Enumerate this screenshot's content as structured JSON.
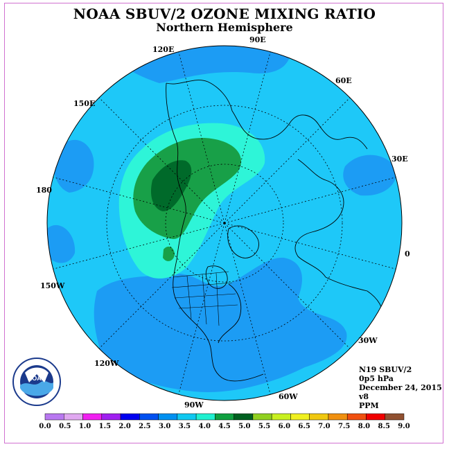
{
  "title": "NOAA SBUV/2 OZONE MIXING RATIO",
  "subtitle": "Northern Hemisphere",
  "longitude_labels": [
    {
      "id": "lon-90e",
      "text": "90E"
    },
    {
      "id": "lon-60e",
      "text": "60E"
    },
    {
      "id": "lon-30e",
      "text": "30E"
    },
    {
      "id": "lon-0",
      "text": "0"
    },
    {
      "id": "lon-30w",
      "text": "30W"
    },
    {
      "id": "lon-60w",
      "text": "60W"
    },
    {
      "id": "lon-90w",
      "text": "90W"
    },
    {
      "id": "lon-120w",
      "text": "120W"
    },
    {
      "id": "lon-150w",
      "text": "150W"
    },
    {
      "id": "lon-180",
      "text": "180"
    },
    {
      "id": "lon-150e",
      "text": "150E"
    },
    {
      "id": "lon-120e",
      "text": "120E"
    }
  ],
  "info": {
    "instrument": "N19 SBUV/2",
    "level": "0p5 hPa",
    "date": "December 24, 2015",
    "version": "v8",
    "units": "PPM"
  },
  "logo": {
    "text": "NOAA",
    "ring_text": "NATIONAL OCEANIC AND ATMOSPHERIC ADMINISTRATION · U.S. DEPARTMENT OF COMMERCE"
  },
  "legend": {
    "labels": [
      "0.0",
      "0.5",
      "1.0",
      "1.5",
      "2.0",
      "2.5",
      "3.0",
      "3.5",
      "4.0",
      "4.5",
      "5.0",
      "5.5",
      "6.0",
      "6.5",
      "7.0",
      "7.5",
      "8.0",
      "8.5",
      "9.0"
    ],
    "colors": [
      "#b878f0",
      "#e0a8f0",
      "#f020f0",
      "#a020f0",
      "#0000f0",
      "#0050f0",
      "#0090f0",
      "#10c8f0",
      "#20f0d0",
      "#10a040",
      "#006020",
      "#90d020",
      "#c8f020",
      "#f0f020",
      "#f0c810",
      "#f09010",
      "#f05010",
      "#f00000",
      "#905030"
    ]
  },
  "field_colors": {
    "background": "#1ec8f8",
    "band_2p5_3": "#1c9cf4",
    "band_3p5_4": "#2ef5d8",
    "band_4_4p5": "#18a048",
    "band_4p5_5": "#006a2a"
  }
}
